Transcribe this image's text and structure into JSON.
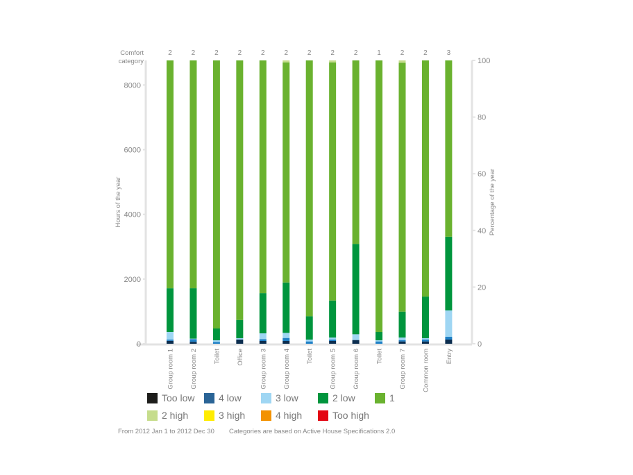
{
  "chart_data": {
    "type": "bar",
    "stacked": true,
    "top_label_title": "Comfort category",
    "ylabel": "Hours of the year",
    "ylabel_right": "Percentage of the year",
    "ylim": [
      0,
      8760
    ],
    "yticks": [
      0,
      2000,
      4000,
      6000,
      8000
    ],
    "ylim_right": [
      0,
      100
    ],
    "yticks_right": [
      0,
      20,
      40,
      60,
      80,
      100
    ],
    "grid": false,
    "legend_placement": "bottom",
    "categories": [
      "Group room 1",
      "Group room 2",
      "Toilet",
      "Office",
      "Group room 3",
      "Group room 4",
      "Toilet",
      "Group room 5",
      "Group room 6",
      "Toilet",
      "Group room 7",
      "Common room",
      "Entry"
    ],
    "comfort_category": [
      "2",
      "2",
      "2",
      "2",
      "2",
      "2",
      "2",
      "2",
      "2",
      "1",
      "2",
      "2",
      "3"
    ],
    "series": [
      {
        "name": "Too low",
        "color": "#1d1d1b",
        "bar_color": "#0b2d4f",
        "values": [
          90,
          60,
          0,
          129,
          86,
          86,
          0,
          86,
          115,
          0,
          72,
          72,
          129
        ]
      },
      {
        "name": "4 low",
        "color": "#2a6496",
        "bar_color": "#1f80c6",
        "values": [
          40,
          85,
          58,
          0,
          58,
          93,
          72,
          43,
          0,
          72,
          43,
          57,
          86
        ]
      },
      {
        "name": "3 low",
        "color": "#9fd6f3",
        "bar_color": "#9fd6f3",
        "values": [
          235,
          13,
          49,
          43,
          178,
          157,
          57,
          64,
          178,
          35,
          78,
          43,
          815
        ]
      },
      {
        "name": "2 low",
        "color": "#00953d",
        "bar_color": "#00953d",
        "values": [
          1350,
          1558,
          365,
          564,
          1243,
          1558,
          722,
          1143,
          2795,
          258,
          801,
          1286,
          2280
        ]
      },
      {
        "name": "1",
        "color": "#6ab22f",
        "bar_color": "#6ab22f",
        "values": [
          7045,
          7044,
          8288,
          8024,
          7195,
          6806,
          7909,
          7364,
          5672,
          8395,
          7696,
          7302,
          5450
        ]
      },
      {
        "name": "2 high",
        "color": "#c6dd8c",
        "bar_color": "#c6dd8c",
        "values": [
          0,
          0,
          0,
          0,
          0,
          60,
          0,
          60,
          0,
          0,
          70,
          0,
          0
        ]
      },
      {
        "name": "3 high",
        "color": "#ffec00",
        "bar_color": "#ffec00",
        "values": [
          0,
          0,
          0,
          0,
          0,
          0,
          0,
          0,
          0,
          0,
          0,
          0,
          0
        ]
      },
      {
        "name": "4 high",
        "color": "#f39200",
        "bar_color": "#f39200",
        "values": [
          0,
          0,
          0,
          0,
          0,
          0,
          0,
          0,
          0,
          0,
          0,
          0,
          0
        ]
      },
      {
        "name": "Too high",
        "color": "#e30613",
        "bar_color": "#e30613",
        "values": [
          0,
          0,
          0,
          0,
          0,
          0,
          0,
          0,
          0,
          0,
          0,
          0,
          0
        ]
      }
    ]
  },
  "footer": {
    "period": "From 2012 Jan 1 to 2012 Dec 30",
    "note": "Categories are based on Active House Specifications 2.0"
  }
}
